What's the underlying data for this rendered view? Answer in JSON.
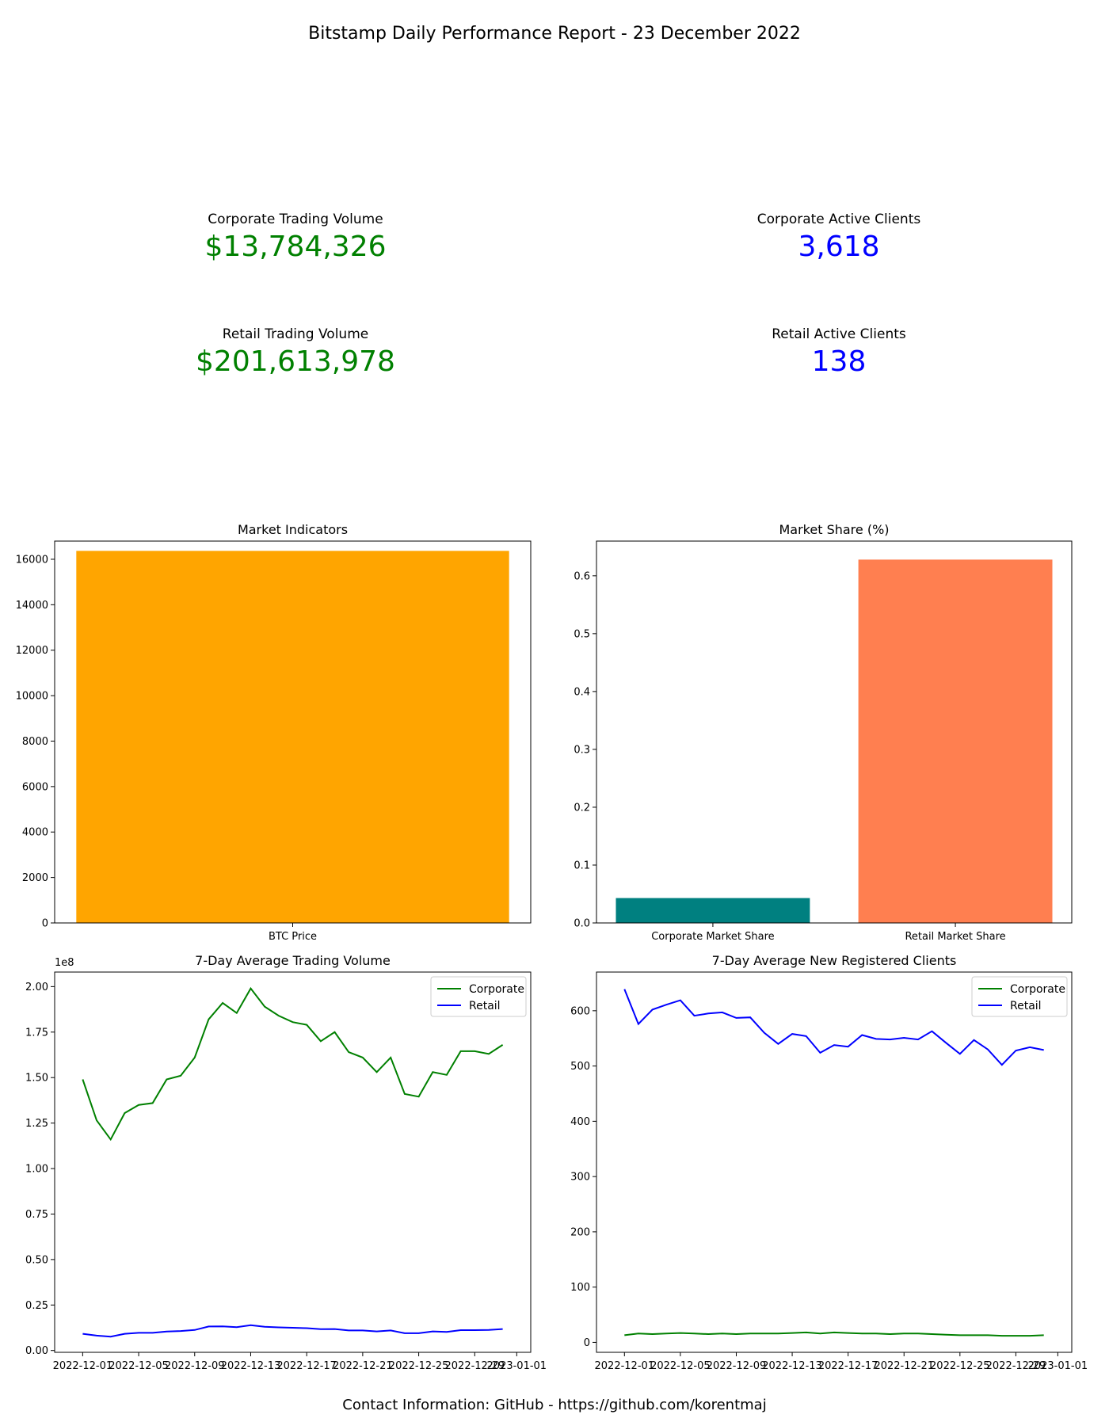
{
  "report_title": "Bitstamp Daily Performance Report - 23 December 2022",
  "kpis": {
    "corporate_volume": {
      "label": "Corporate Trading Volume",
      "value": "$13,784,326",
      "color": "#008000"
    },
    "corporate_clients": {
      "label": "Corporate Active Clients",
      "value": "3,618",
      "color": "#0000ff"
    },
    "retail_volume": {
      "label": "Retail Trading Volume",
      "value": "$201,613,978",
      "color": "#008000"
    },
    "retail_clients": {
      "label": "Retail Active Clients",
      "value": "138",
      "color": "#0000ff"
    }
  },
  "footer": "Contact Information: GitHub - https://github.com/korentmaj",
  "chart_data": [
    {
      "type": "bar",
      "title": "Market Indicators",
      "categories": [
        "BTC Price"
      ],
      "values": [
        16370
      ],
      "colors": [
        "#ffa500"
      ],
      "ylim": [
        0,
        16800
      ],
      "yticks": [
        0,
        2000,
        4000,
        6000,
        8000,
        10000,
        12000,
        14000,
        16000
      ],
      "ytick_labels": [
        "0",
        "2000",
        "4000",
        "6000",
        "8000",
        "10000",
        "12000",
        "14000",
        "16000"
      ]
    },
    {
      "type": "bar",
      "title": "Market Share (%)",
      "categories": [
        "Corporate Market Share",
        "Retail Market Share"
      ],
      "values": [
        0.043,
        0.628
      ],
      "colors": [
        "#008080",
        "#ff7f50"
      ],
      "ylim": [
        0,
        0.66
      ],
      "yticks": [
        0,
        0.1,
        0.2,
        0.3,
        0.4,
        0.5,
        0.6
      ],
      "ytick_labels": [
        "0.0",
        "0.1",
        "0.2",
        "0.3",
        "0.4",
        "0.5",
        "0.6"
      ]
    },
    {
      "type": "line",
      "title": "7-Day Average Trading Volume",
      "offset_text": "1e8",
      "x": [
        "2022-12-01",
        "2022-12-02",
        "2022-12-03",
        "2022-12-04",
        "2022-12-05",
        "2022-12-06",
        "2022-12-07",
        "2022-12-08",
        "2022-12-09",
        "2022-12-10",
        "2022-12-11",
        "2022-12-12",
        "2022-12-13",
        "2022-12-14",
        "2022-12-15",
        "2022-12-16",
        "2022-12-17",
        "2022-12-18",
        "2022-12-19",
        "2022-12-20",
        "2022-12-21",
        "2022-12-22",
        "2022-12-23",
        "2022-12-24",
        "2022-12-25",
        "2022-12-26",
        "2022-12-27",
        "2022-12-28",
        "2022-12-29",
        "2022-12-30",
        "2022-12-31"
      ],
      "xlim": [
        "2022-11-29",
        "2023-01-02"
      ],
      "xticks": [
        "2022-12-01",
        "2022-12-05",
        "2022-12-09",
        "2022-12-13",
        "2022-12-17",
        "2022-12-21",
        "2022-12-25",
        "2022-12-29",
        "2023-01-01"
      ],
      "ylim": [
        -0.01,
        2.08
      ],
      "yticks": [
        0,
        0.25,
        0.5,
        0.75,
        1.0,
        1.25,
        1.5,
        1.75,
        2.0
      ],
      "ytick_labels": [
        "0.00",
        "0.25",
        "0.50",
        "0.75",
        "1.00",
        "1.25",
        "1.50",
        "1.75",
        "2.00"
      ],
      "legend_position": "upper right",
      "series": [
        {
          "name": "Corporate",
          "color": "#008000",
          "values": [
            1.49,
            1.265,
            1.16,
            1.305,
            1.35,
            1.36,
            1.49,
            1.51,
            1.61,
            1.82,
            1.91,
            1.855,
            1.99,
            1.89,
            1.84,
            1.805,
            1.79,
            1.7,
            1.75,
            1.64,
            1.61,
            1.53,
            1.61,
            1.41,
            1.395,
            1.53,
            1.515,
            1.645,
            1.645,
            1.63,
            1.68
          ]
        },
        {
          "name": "Retail",
          "color": "#0000ff",
          "values": [
            0.092,
            0.082,
            0.076,
            0.092,
            0.097,
            0.097,
            0.104,
            0.107,
            0.113,
            0.132,
            0.133,
            0.128,
            0.139,
            0.13,
            0.127,
            0.125,
            0.123,
            0.117,
            0.118,
            0.11,
            0.11,
            0.105,
            0.11,
            0.095,
            0.095,
            0.105,
            0.102,
            0.112,
            0.112,
            0.113,
            0.118
          ]
        }
      ]
    },
    {
      "type": "line",
      "title": "7-Day Average New Registered Clients",
      "x": [
        "2022-12-01",
        "2022-12-02",
        "2022-12-03",
        "2022-12-04",
        "2022-12-05",
        "2022-12-06",
        "2022-12-07",
        "2022-12-08",
        "2022-12-09",
        "2022-12-10",
        "2022-12-11",
        "2022-12-12",
        "2022-12-13",
        "2022-12-14",
        "2022-12-15",
        "2022-12-16",
        "2022-12-17",
        "2022-12-18",
        "2022-12-19",
        "2022-12-20",
        "2022-12-21",
        "2022-12-22",
        "2022-12-23",
        "2022-12-24",
        "2022-12-25",
        "2022-12-26",
        "2022-12-27",
        "2022-12-28",
        "2022-12-29",
        "2022-12-30",
        "2022-12-31"
      ],
      "xlim": [
        "2022-11-29",
        "2023-01-02"
      ],
      "xticks": [
        "2022-12-01",
        "2022-12-05",
        "2022-12-09",
        "2022-12-13",
        "2022-12-17",
        "2022-12-21",
        "2022-12-25",
        "2022-12-29",
        "2023-01-01"
      ],
      "ylim": [
        -18,
        670
      ],
      "yticks": [
        0,
        100,
        200,
        300,
        400,
        500,
        600
      ],
      "ytick_labels": [
        "0",
        "100",
        "200",
        "300",
        "400",
        "500",
        "600"
      ],
      "legend_position": "upper right",
      "series": [
        {
          "name": "Corporate",
          "color": "#008000",
          "values": [
            13,
            16,
            15,
            16,
            17,
            16,
            15,
            16,
            15,
            16,
            16,
            16,
            17,
            18,
            16,
            18,
            17,
            16,
            16,
            15,
            16,
            16,
            15,
            14,
            13,
            13,
            13,
            12,
            12,
            12,
            13
          ]
        },
        {
          "name": "Retail",
          "color": "#0000ff",
          "values": [
            639,
            576,
            602,
            611,
            619,
            591,
            595,
            597,
            587,
            588,
            560,
            540,
            558,
            554,
            524,
            538,
            535,
            556,
            549,
            548,
            551,
            548,
            563,
            542,
            522,
            547,
            530,
            502,
            528,
            534,
            529
          ]
        }
      ]
    }
  ]
}
